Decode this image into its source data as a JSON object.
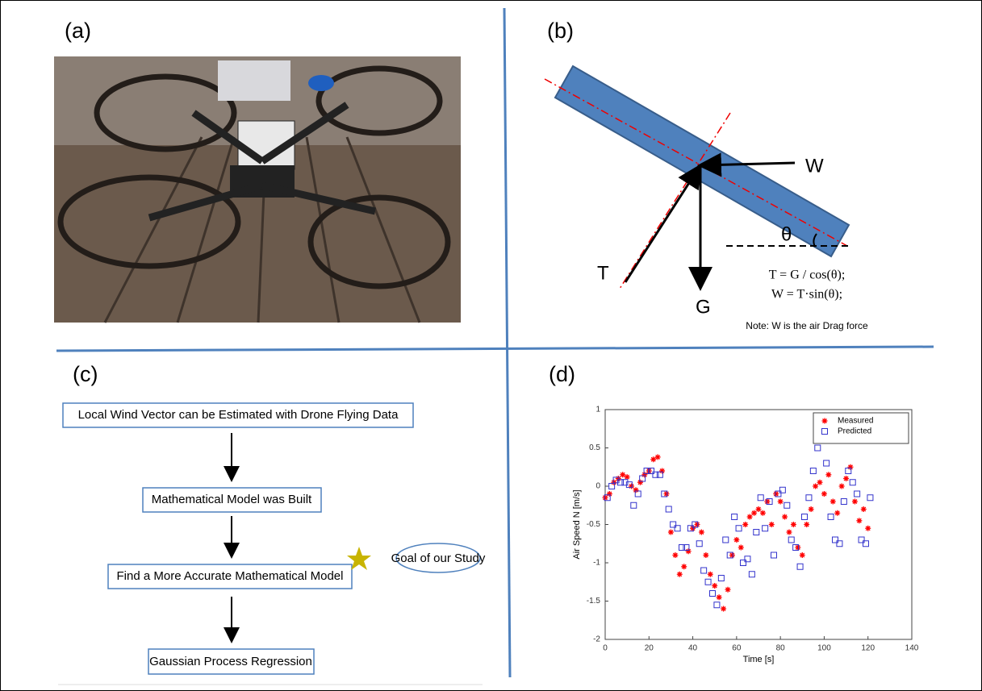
{
  "panels": {
    "a": {
      "label": "(a)"
    },
    "b": {
      "label": "(b)"
    },
    "c": {
      "label": "(c)"
    },
    "d": {
      "label": "(d)"
    }
  },
  "force_diagram": {
    "wind": "W",
    "thrust": "T",
    "gravity": "G",
    "angle": "θ",
    "equation_1": "T = G / cos(θ);",
    "equation_2": "W = T·sin(θ);",
    "note": "Note: W is the air Drag force"
  },
  "flowchart": {
    "steps": [
      "Local Wind Vector can be Estimated with Drone Flying Data",
      "Mathematical Model was Built",
      "Find a More Accurate Mathematical Model",
      "Gaussian Process Regression"
    ],
    "goal": "Goal of our Study"
  },
  "chart_data": {
    "type": "scatter",
    "xlabel": "Time [s]",
    "ylabel": "Air Speed N [m/s]",
    "xlim": [
      0,
      140
    ],
    "xticks": [
      0,
      20,
      40,
      60,
      80,
      100,
      120,
      140
    ],
    "ylim": [
      -2,
      1
    ],
    "yticks": [
      -2,
      -1.5,
      -1,
      -0.5,
      0,
      0.5,
      1
    ],
    "legend": "upper right",
    "series": [
      {
        "name": "Measured",
        "color": "#ff0000",
        "marker": "asterisk",
        "x": [
          0,
          2,
          4,
          6,
          8,
          10,
          12,
          14,
          16,
          18,
          20,
          22,
          24,
          26,
          28,
          30,
          32,
          34,
          36,
          38,
          40,
          42,
          44,
          46,
          48,
          50,
          52,
          54,
          56,
          58,
          60,
          62,
          64,
          66,
          68,
          70,
          72,
          74,
          76,
          78,
          80,
          82,
          84,
          86,
          88,
          90,
          92,
          94,
          96,
          98,
          100,
          102,
          104,
          106,
          108,
          110,
          112,
          114,
          116,
          118,
          120
        ],
        "values": [
          -0.15,
          -0.1,
          0.05,
          0.1,
          0.15,
          0.12,
          0.0,
          -0.05,
          0.05,
          0.15,
          0.2,
          0.35,
          0.38,
          0.2,
          -0.1,
          -0.6,
          -0.9,
          -1.15,
          -1.05,
          -0.85,
          -0.55,
          -0.5,
          -0.6,
          -0.9,
          -1.15,
          -1.3,
          -1.45,
          -1.6,
          -1.35,
          -0.9,
          -0.7,
          -0.8,
          -0.5,
          -0.4,
          -0.35,
          -0.3,
          -0.35,
          -0.2,
          -0.5,
          -0.1,
          -0.2,
          -0.4,
          -0.6,
          -0.5,
          -0.8,
          -0.9,
          -0.5,
          -0.3,
          0.0,
          0.05,
          -0.1,
          0.15,
          -0.2,
          -0.35,
          0.0,
          0.1,
          0.25,
          -0.2,
          -0.45,
          -0.3,
          -0.55
        ]
      },
      {
        "name": "Predicted",
        "color": "#3333cc",
        "marker": "square",
        "x": [
          1,
          3,
          5,
          7,
          9,
          11,
          13,
          15,
          17,
          19,
          21,
          23,
          25,
          27,
          29,
          31,
          33,
          35,
          37,
          39,
          41,
          43,
          45,
          47,
          49,
          51,
          53,
          55,
          57,
          59,
          61,
          63,
          65,
          67,
          69,
          71,
          73,
          75,
          77,
          79,
          81,
          83,
          85,
          87,
          89,
          91,
          93,
          95,
          97,
          99,
          101,
          103,
          105,
          107,
          109,
          111,
          113,
          115,
          117,
          119,
          121
        ],
        "values": [
          -0.15,
          0.0,
          0.08,
          0.05,
          0.05,
          0.02,
          -0.25,
          -0.1,
          0.1,
          0.2,
          0.2,
          0.15,
          0.15,
          -0.1,
          -0.3,
          -0.5,
          -0.55,
          -0.8,
          -0.8,
          -0.55,
          -0.5,
          -0.75,
          -1.1,
          -1.25,
          -1.4,
          -1.55,
          -1.2,
          -0.7,
          -0.9,
          -0.4,
          -0.55,
          -1.0,
          -0.95,
          -1.15,
          -0.6,
          -0.15,
          -0.55,
          -0.2,
          -0.9,
          -0.1,
          -0.05,
          -0.25,
          -0.7,
          -0.8,
          -1.05,
          -0.4,
          -0.15,
          0.2,
          0.5,
          0.6,
          0.3,
          -0.4,
          -0.7,
          -0.75,
          -0.2,
          0.2,
          0.05,
          -0.1,
          -0.7,
          -0.75,
          -0.15
        ]
      }
    ]
  }
}
